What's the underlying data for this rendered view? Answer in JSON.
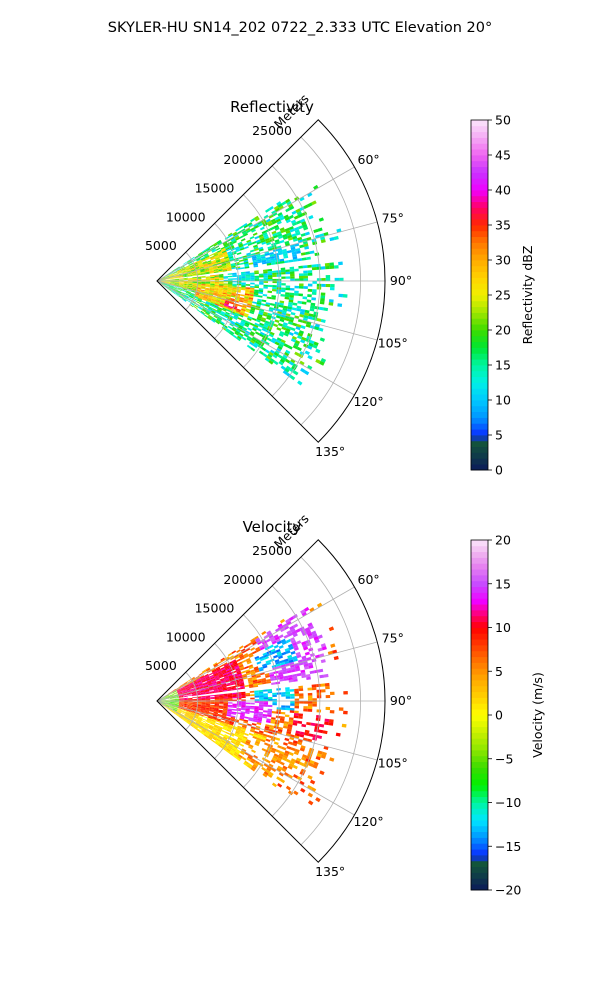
{
  "figure": {
    "suptitle": "SKYLER-HU  SN14_202  0722_2.333 UTC Elevation 20°"
  },
  "colors": {
    "grid": "#b0b0b0",
    "frame": "#000000"
  },
  "chart_data": [
    {
      "type": "heatmap",
      "title": "Reflectivity",
      "projection": "polar-sector",
      "range_label": "Meters",
      "azimuth_range_deg": [
        45,
        135
      ],
      "range_max_m": 28000,
      "range_ticks": [
        {
          "value": 5000,
          "label": "5000"
        },
        {
          "value": 10000,
          "label": "10000"
        },
        {
          "value": 15000,
          "label": "15000"
        },
        {
          "value": 20000,
          "label": "20000"
        },
        {
          "value": 25000,
          "label": "25000"
        }
      ],
      "azimuth_ticks": [
        {
          "value": 60,
          "label": "60°"
        },
        {
          "value": 75,
          "label": "75°"
        },
        {
          "value": 90,
          "label": "90°"
        },
        {
          "value": 105,
          "label": "105°"
        },
        {
          "value": 120,
          "label": "120°"
        },
        {
          "value": 135,
          "label": "135°"
        }
      ],
      "grid": true,
      "colorbar": {
        "label": "Reflectivity dBZ",
        "vmin": 0,
        "vmax": 50,
        "ticks": [
          {
            "value": 0,
            "label": "0"
          },
          {
            "value": 5,
            "label": "5"
          },
          {
            "value": 10,
            "label": "10"
          },
          {
            "value": 15,
            "label": "15"
          },
          {
            "value": 20,
            "label": "20"
          },
          {
            "value": 25,
            "label": "25"
          },
          {
            "value": 30,
            "label": "30"
          },
          {
            "value": 35,
            "label": "35"
          },
          {
            "value": 40,
            "label": "40"
          },
          {
            "value": 45,
            "label": "45"
          },
          {
            "value": 50,
            "label": "50"
          }
        ],
        "stops": [
          {
            "value": 0,
            "color": "#0b1a5a"
          },
          {
            "value": 2,
            "color": "#0f3a4a"
          },
          {
            "value": 4,
            "color": "#13553a"
          },
          {
            "value": 5,
            "color": "#0a2cff"
          },
          {
            "value": 7.5,
            "color": "#0096ff"
          },
          {
            "value": 10,
            "color": "#00c8ff"
          },
          {
            "value": 12.5,
            "color": "#00f0e6"
          },
          {
            "value": 15,
            "color": "#00f5a0"
          },
          {
            "value": 17.5,
            "color": "#00e632"
          },
          {
            "value": 20,
            "color": "#3cdc00"
          },
          {
            "value": 22.5,
            "color": "#a0e600"
          },
          {
            "value": 25,
            "color": "#f0f000"
          },
          {
            "value": 27.5,
            "color": "#ffd200"
          },
          {
            "value": 30,
            "color": "#ffaa00"
          },
          {
            "value": 32.5,
            "color": "#ff7800"
          },
          {
            "value": 35,
            "color": "#ff2800"
          },
          {
            "value": 37.5,
            "color": "#ff0064"
          },
          {
            "value": 40,
            "color": "#f000ff"
          },
          {
            "value": 42.5,
            "color": "#c832ff"
          },
          {
            "value": 45,
            "color": "#f064f0"
          },
          {
            "value": 47.5,
            "color": "#f5aaf5"
          },
          {
            "value": 50,
            "color": "#fbe6fb"
          }
        ]
      },
      "beam_gaps_deg": [
        83
      ],
      "echo_region": {
        "az_min": 57,
        "az_max": 126,
        "range_max_m": 24000
      },
      "regions": [
        {
          "az_min": 57,
          "az_max": 126,
          "r_min": 0,
          "r_max": 24000,
          "value": 16,
          "jitter": 6,
          "density": 0.68
        },
        {
          "az_min": 64,
          "az_max": 105,
          "r_min": 0,
          "r_max": 9000,
          "value": 24,
          "jitter": 6,
          "density": 0.95
        },
        {
          "az_min": 94,
          "az_max": 112,
          "r_min": 5000,
          "r_max": 12000,
          "value": 28,
          "jitter": 6,
          "density": 0.95
        },
        {
          "az_min": 104,
          "az_max": 110,
          "r_min": 8500,
          "r_max": 11000,
          "value": 35,
          "jitter": 4,
          "density": 0.95
        },
        {
          "az_min": 75,
          "az_max": 81,
          "r_min": 12000,
          "r_max": 18000,
          "value": 11,
          "jitter": 3,
          "density": 0.8
        },
        {
          "az_min": 84,
          "az_max": 90,
          "r_min": 8000,
          "r_max": 12000,
          "value": 12,
          "jitter": 3,
          "density": 0.85
        }
      ]
    },
    {
      "type": "heatmap",
      "title": "Velocity",
      "projection": "polar-sector",
      "range_label": "Meters",
      "azimuth_range_deg": [
        45,
        135
      ],
      "range_max_m": 28000,
      "range_ticks": [
        {
          "value": 5000,
          "label": "5000"
        },
        {
          "value": 10000,
          "label": "10000"
        },
        {
          "value": 15000,
          "label": "15000"
        },
        {
          "value": 20000,
          "label": "20000"
        },
        {
          "value": 25000,
          "label": "25000"
        }
      ],
      "azimuth_ticks": [
        {
          "value": 60,
          "label": "60°"
        },
        {
          "value": 75,
          "label": "75°"
        },
        {
          "value": 90,
          "label": "90°"
        },
        {
          "value": 105,
          "label": "105°"
        },
        {
          "value": 120,
          "label": "120°"
        },
        {
          "value": 135,
          "label": "135°"
        }
      ],
      "grid": true,
      "colorbar": {
        "label": "Velocity (m/s)",
        "vmin": -20,
        "vmax": 20,
        "ticks": [
          {
            "value": -20,
            "label": "−20"
          },
          {
            "value": -15,
            "label": "−15"
          },
          {
            "value": -10,
            "label": "−10"
          },
          {
            "value": -5,
            "label": "−5"
          },
          {
            "value": 0,
            "label": "0"
          },
          {
            "value": 5,
            "label": "5"
          },
          {
            "value": 10,
            "label": "10"
          },
          {
            "value": 15,
            "label": "15"
          },
          {
            "value": 20,
            "label": "20"
          }
        ],
        "stops": [
          {
            "value": -20,
            "color": "#0b1a5a"
          },
          {
            "value": -18.5,
            "color": "#0f3a4a"
          },
          {
            "value": -17,
            "color": "#13553a"
          },
          {
            "value": -16,
            "color": "#0a2cff"
          },
          {
            "value": -14,
            "color": "#0096ff"
          },
          {
            "value": -12,
            "color": "#00e6ff"
          },
          {
            "value": -10,
            "color": "#00f5a0"
          },
          {
            "value": -8,
            "color": "#00f000"
          },
          {
            "value": -6,
            "color": "#3cdc00"
          },
          {
            "value": -4,
            "color": "#8ce600"
          },
          {
            "value": -2,
            "color": "#c8f000"
          },
          {
            "value": 0,
            "color": "#ffff00"
          },
          {
            "value": 2,
            "color": "#ffd200"
          },
          {
            "value": 4,
            "color": "#ffaa00"
          },
          {
            "value": 6,
            "color": "#ff7800"
          },
          {
            "value": 8,
            "color": "#ff3c00"
          },
          {
            "value": 10,
            "color": "#ff0000"
          },
          {
            "value": 11.5,
            "color": "#ff0078"
          },
          {
            "value": 13,
            "color": "#f000ff"
          },
          {
            "value": 15,
            "color": "#c84bff"
          },
          {
            "value": 17,
            "color": "#e682f0"
          },
          {
            "value": 18.5,
            "color": "#f0b4f0"
          },
          {
            "value": 20,
            "color": "#fbe6fb"
          }
        ]
      },
      "beam_gaps_deg": [
        83
      ],
      "echo_region": {
        "az_min": 57,
        "az_max": 126,
        "range_max_m": 24000
      },
      "regions": [
        {
          "az_min": 57,
          "az_max": 126,
          "r_min": 0,
          "r_max": 24000,
          "value": 6,
          "jitter": 3,
          "density": 0.6
        },
        {
          "az_min": 62,
          "az_max": 88,
          "r_min": 0,
          "r_max": 11000,
          "value": 11,
          "jitter": 1.5,
          "density": 0.95
        },
        {
          "az_min": 88,
          "az_max": 112,
          "r_min": 0,
          "r_max": 10000,
          "value": 8,
          "jitter": 2,
          "density": 0.95
        },
        {
          "az_min": 108,
          "az_max": 126,
          "r_min": 0,
          "r_max": 14000,
          "value": 1.5,
          "jitter": 1.5,
          "density": 0.9
        },
        {
          "az_min": 110,
          "az_max": 124,
          "r_min": 12000,
          "r_max": 19000,
          "value": 5,
          "jitter": 2,
          "density": 0.6
        },
        {
          "az_min": 58,
          "az_max": 82,
          "r_min": 14000,
          "r_max": 22000,
          "value": 14.5,
          "jitter": 1.5,
          "density": 0.75
        },
        {
          "az_min": 64,
          "az_max": 74,
          "r_min": 13000,
          "r_max": 18000,
          "value": -13,
          "jitter": 2,
          "density": 0.7
        },
        {
          "az_min": 84,
          "az_max": 94,
          "r_min": 12000,
          "r_max": 17000,
          "value": -12.5,
          "jitter": 2,
          "density": 0.75
        },
        {
          "az_min": 95,
          "az_max": 104,
          "r_min": 17000,
          "r_max": 23000,
          "value": 10,
          "jitter": 1.5,
          "density": 0.7
        },
        {
          "az_min": 90,
          "az_max": 102,
          "r_min": 9000,
          "r_max": 14000,
          "value": 14,
          "jitter": 1.5,
          "density": 0.75
        },
        {
          "az_min": 60,
          "az_max": 118,
          "r_min": 0,
          "r_max": 2500,
          "value": -5,
          "jitter": 2,
          "density": 0.7
        }
      ]
    }
  ]
}
